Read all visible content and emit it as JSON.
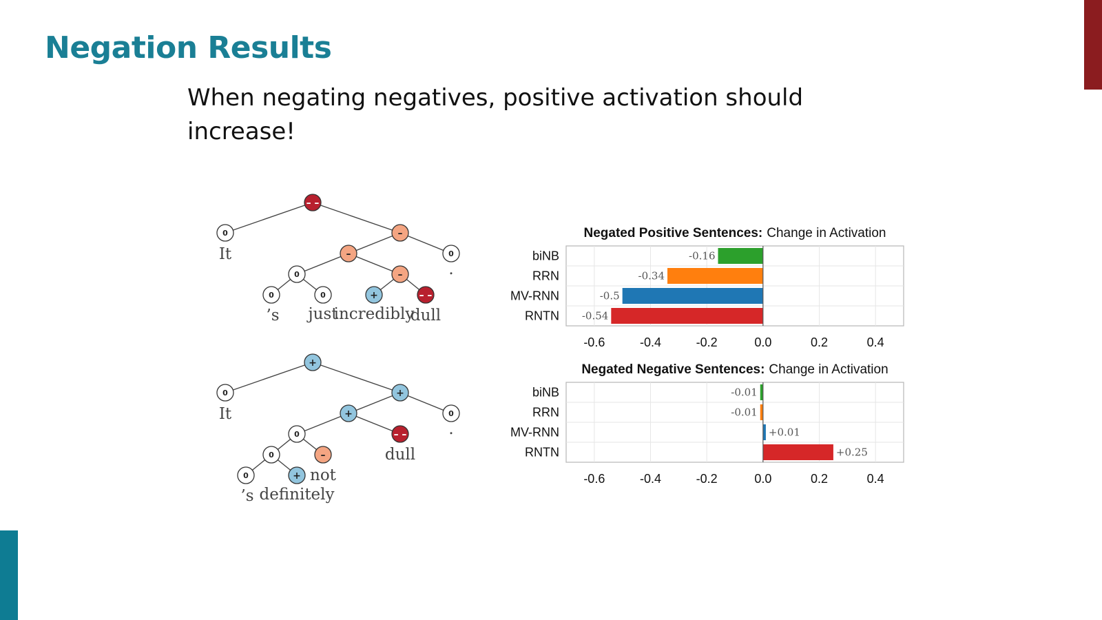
{
  "slide": {
    "title": "Negation Results",
    "body": "When negating negatives, positive activation should increase!"
  },
  "colors": {
    "title": "#1a7f95",
    "accent_top": "#8b1c1f",
    "accent_bottom": "#0e7c93",
    "node_very_negative": "#b8202e",
    "node_negative": "#f4a582",
    "node_neutral": "#ffffff",
    "node_positive": "#92c5de"
  },
  "trees": [
    {
      "nodes": [
        {
          "id": "root",
          "sym": "– –",
          "sentiment": "very_negative"
        },
        {
          "id": "it",
          "sym": "0",
          "sentiment": "neutral",
          "word": "It"
        },
        {
          "id": "n1",
          "sym": "–",
          "sentiment": "negative"
        },
        {
          "id": "n2",
          "sym": "–",
          "sentiment": "negative"
        },
        {
          "id": "period",
          "sym": "0",
          "sentiment": "neutral",
          "word": "."
        },
        {
          "id": "n3",
          "sym": "0",
          "sentiment": "neutral"
        },
        {
          "id": "n4",
          "sym": "–",
          "sentiment": "negative"
        },
        {
          "id": "s",
          "sym": "0",
          "sentiment": "neutral",
          "word": "’s"
        },
        {
          "id": "just",
          "sym": "0",
          "sentiment": "neutral",
          "word": "just"
        },
        {
          "id": "incredibly",
          "sym": "+",
          "sentiment": "positive",
          "word": "incredibly"
        },
        {
          "id": "dull",
          "sym": "– –",
          "sentiment": "very_negative",
          "word": "dull"
        }
      ]
    },
    {
      "nodes": [
        {
          "id": "root",
          "sym": "+",
          "sentiment": "positive"
        },
        {
          "id": "it",
          "sym": "0",
          "sentiment": "neutral",
          "word": "It"
        },
        {
          "id": "n1",
          "sym": "+",
          "sentiment": "positive"
        },
        {
          "id": "n2",
          "sym": "+",
          "sentiment": "positive"
        },
        {
          "id": "period",
          "sym": "0",
          "sentiment": "neutral",
          "word": "."
        },
        {
          "id": "n3",
          "sym": "0",
          "sentiment": "neutral"
        },
        {
          "id": "dull",
          "sym": "– –",
          "sentiment": "very_negative",
          "word": "dull"
        },
        {
          "id": "n4",
          "sym": "0",
          "sentiment": "neutral"
        },
        {
          "id": "not",
          "sym": "–",
          "sentiment": "negative",
          "word": "not"
        },
        {
          "id": "s",
          "sym": "0",
          "sentiment": "neutral",
          "word": "’s"
        },
        {
          "id": "definitely",
          "sym": "+",
          "sentiment": "positive",
          "word": "definitely"
        }
      ]
    }
  ],
  "chart_data": [
    {
      "type": "bar",
      "orientation": "horizontal",
      "title_bold": "Negated Positive Sentences:",
      "title_rest": "Change in Activation",
      "categories": [
        "biNB",
        "RRN",
        "MV-RNN",
        "RNTN"
      ],
      "values": [
        -0.16,
        -0.34,
        -0.5,
        -0.54
      ],
      "value_labels": [
        "-0.16",
        "-0.34",
        "-0.5",
        "-0.54"
      ],
      "colors": [
        "#2ca02c",
        "#ff7f0e",
        "#1f77b4",
        "#d62728"
      ],
      "xlim": [
        -0.7,
        0.5
      ],
      "xticks": [
        -0.6,
        -0.4,
        -0.2,
        0.0,
        0.2,
        0.4
      ],
      "xtick_labels": [
        "-0.6",
        "-0.4",
        "-0.2",
        "0.0",
        "0.2",
        "0.4"
      ],
      "grid": true
    },
    {
      "type": "bar",
      "orientation": "horizontal",
      "title_bold": "Negated Negative Sentences:",
      "title_rest": "Change in Activation",
      "categories": [
        "biNB",
        "RRN",
        "MV-RNN",
        "RNTN"
      ],
      "values": [
        -0.01,
        -0.01,
        0.01,
        0.25
      ],
      "value_labels": [
        "-0.01",
        "-0.01",
        "+0.01",
        "+0.25"
      ],
      "colors": [
        "#2ca02c",
        "#ff7f0e",
        "#1f77b4",
        "#d62728"
      ],
      "xlim": [
        -0.7,
        0.5
      ],
      "xticks": [
        -0.6,
        -0.4,
        -0.2,
        0.0,
        0.2,
        0.4
      ],
      "xtick_labels": [
        "-0.6",
        "-0.4",
        "-0.2",
        "0.0",
        "0.2",
        "0.4"
      ],
      "grid": true
    }
  ]
}
